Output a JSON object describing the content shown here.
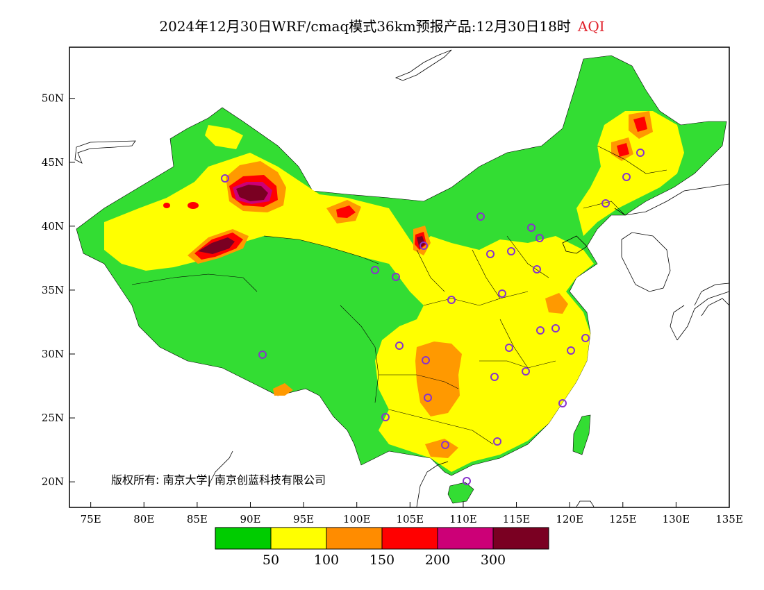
{
  "title": {
    "main": "2024年12月30日WRF/cmaq模式36km预报产品:12月30日18时",
    "variable": "AQI"
  },
  "axes": {
    "lon_ticks": [
      "75E",
      "80E",
      "85E",
      "90E",
      "95E",
      "100E",
      "105E",
      "110E",
      "115E",
      "120E",
      "125E",
      "130E",
      "135E"
    ],
    "lat_ticks": [
      "20N",
      "25N",
      "30N",
      "35N",
      "40N",
      "45N",
      "50N"
    ],
    "lon_range": [
      73,
      135
    ],
    "lat_range": [
      18,
      54
    ]
  },
  "legend": {
    "colors": [
      "#00cc00",
      "#ffff00",
      "#ff8c00",
      "#ff0000",
      "#cc0077",
      "#7a0022"
    ],
    "labels": [
      "50",
      "100",
      "150",
      "200",
      "300"
    ]
  },
  "copyright": "版权所有: 南京大学| 南京创蓝科技有限公司",
  "colors": {
    "good": "#33dd33",
    "moderate": "#ffff00",
    "usg": "#ff9900",
    "unhealthy": "#ff0000",
    "very_unhealthy": "#cc0077",
    "hazardous": "#7a0022",
    "station_marker": "#8833cc"
  }
}
